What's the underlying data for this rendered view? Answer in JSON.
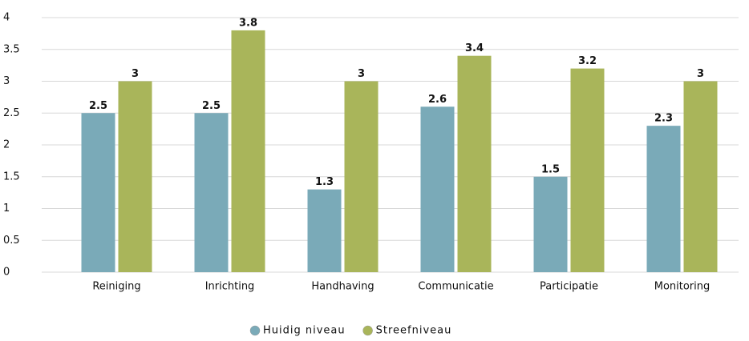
{
  "chart_data": {
    "type": "bar",
    "categories": [
      "Reiniging",
      "Inrichting",
      "Handhaving",
      "Communicatie",
      "Participatie",
      "Monitoring"
    ],
    "series": [
      {
        "name": "Huidig niveau",
        "color": "#7aaab8",
        "values": [
          2.5,
          2.5,
          1.3,
          2.6,
          1.5,
          2.3
        ]
      },
      {
        "name": "Streefniveau",
        "color": "#a9b55a",
        "values": [
          3,
          3.8,
          3,
          3.4,
          3.2,
          3
        ]
      }
    ],
    "ylim": [
      0,
      4
    ],
    "yticks": [
      0,
      0.5,
      1,
      1.5,
      2,
      2.5,
      3,
      3.5,
      4
    ],
    "grid": true,
    "legend": "bottom"
  }
}
